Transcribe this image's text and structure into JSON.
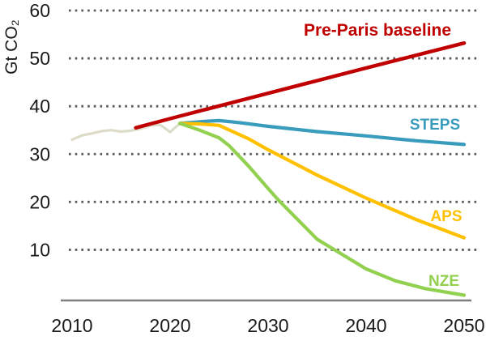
{
  "chart_data": {
    "type": "line",
    "title": "",
    "xlabel": "",
    "ylabel": "Gt CO₂",
    "xlim": [
      2010,
      2050
    ],
    "ylim": [
      0,
      60
    ],
    "x_ticks": [
      2010,
      2020,
      2030,
      2040,
      2050
    ],
    "y_ticks": [
      60,
      50,
      40,
      30,
      20,
      10
    ],
    "grid": "horizontal-dotted",
    "legend_position": "inline-labels-near-line-ends",
    "series": [
      {
        "key": "historical",
        "label": "",
        "color": "#dcdcc8",
        "width": 3.2,
        "points": [
          [
            2010,
            33.0
          ],
          [
            2011,
            33.9
          ],
          [
            2012,
            34.3
          ],
          [
            2013,
            34.8
          ],
          [
            2014,
            35.0
          ],
          [
            2015,
            34.7
          ],
          [
            2016,
            34.9
          ],
          [
            2017,
            35.3
          ],
          [
            2018,
            36.0
          ],
          [
            2019,
            36.1
          ],
          [
            2020,
            34.6
          ],
          [
            2021,
            36.4
          ]
        ]
      },
      {
        "key": "pre-paris-baseline",
        "label": "Pre-Paris baseline",
        "color": "#c00000",
        "width": 4.5,
        "points": [
          [
            2016.5,
            35.5
          ],
          [
            2020,
            37.4
          ],
          [
            2030,
            42.7
          ],
          [
            2040,
            48.0
          ],
          [
            2050,
            53.2
          ]
        ]
      },
      {
        "key": "steps",
        "label": "STEPS",
        "color": "#399cbd",
        "width": 4.2,
        "points": [
          [
            2021,
            36.4
          ],
          [
            2022,
            36.6
          ],
          [
            2024,
            36.9
          ],
          [
            2025,
            37.0
          ],
          [
            2027,
            36.6
          ],
          [
            2030,
            35.8
          ],
          [
            2035,
            34.7
          ],
          [
            2040,
            33.8
          ],
          [
            2045,
            32.8
          ],
          [
            2050,
            32.0
          ]
        ]
      },
      {
        "key": "aps",
        "label": "APS",
        "color": "#ffc000",
        "width": 4.2,
        "points": [
          [
            2021,
            36.4
          ],
          [
            2023,
            36.3
          ],
          [
            2025,
            36.0
          ],
          [
            2028,
            33.2
          ],
          [
            2030,
            30.9
          ],
          [
            2035,
            25.6
          ],
          [
            2040,
            20.8
          ],
          [
            2045,
            16.4
          ],
          [
            2050,
            12.5
          ]
        ]
      },
      {
        "key": "nze",
        "label": "NZE",
        "color": "#92d050",
        "width": 4.2,
        "points": [
          [
            2021,
            36.4
          ],
          [
            2023,
            35.0
          ],
          [
            2025,
            33.4
          ],
          [
            2026,
            31.8
          ],
          [
            2028,
            27.5
          ],
          [
            2030,
            22.8
          ],
          [
            2031,
            20.5
          ],
          [
            2035,
            12.2
          ],
          [
            2040,
            6.0
          ],
          [
            2043,
            3.5
          ],
          [
            2046,
            1.9
          ],
          [
            2050,
            0.5
          ]
        ]
      }
    ],
    "annotations": [
      {
        "series": "pre-paris-baseline",
        "x": 466,
        "y": 44,
        "size": 21
      },
      {
        "series": "steps",
        "x": 537,
        "y": 160,
        "size": 19
      },
      {
        "series": "aps",
        "x": 551,
        "y": 273,
        "size": 19
      },
      {
        "series": "nze",
        "x": 548,
        "y": 353,
        "size": 19
      }
    ]
  },
  "style": {
    "background": "#ffffff",
    "grid_color": "#595959",
    "axis_line_color": "#7f7f7f",
    "tick_label_color": "#1a1a1a",
    "tick_font_size": 23
  }
}
